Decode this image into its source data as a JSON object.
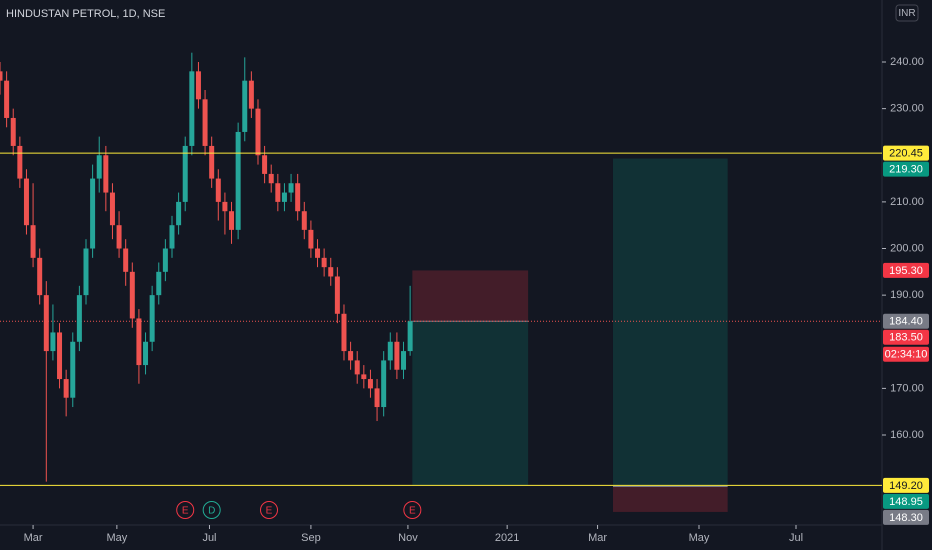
{
  "chart_data": {
    "type": "candlestick",
    "title": "HINDUSTAN PETROL, 1D, NSE",
    "currency_button": "INR",
    "up_color": "#26a69a",
    "down_color": "#ef5350",
    "xlim": [
      0,
      400
    ],
    "ylim": [
      140.7,
      253.3
    ],
    "xticks": [
      {
        "value": 15,
        "label": "Mar"
      },
      {
        "value": 53,
        "label": "May"
      },
      {
        "value": 95,
        "label": "Jul"
      },
      {
        "value": 141,
        "label": "Sep"
      },
      {
        "value": 185,
        "label": "Nov"
      },
      {
        "value": 230,
        "label": "2021"
      },
      {
        "value": 271,
        "label": "Mar"
      },
      {
        "value": 317,
        "label": "May"
      },
      {
        "value": 361,
        "label": "Jul"
      }
    ],
    "yticks": [
      {
        "value": 240,
        "label": "240.00"
      },
      {
        "value": 230,
        "label": "230.00"
      },
      {
        "value": 210,
        "label": "210.00"
      },
      {
        "value": 200,
        "label": "200.00"
      },
      {
        "value": 190,
        "label": "190.00"
      },
      {
        "value": 170,
        "label": "170.00"
      },
      {
        "value": 160,
        "label": "160.00"
      }
    ],
    "x": [
      0,
      3,
      6,
      9,
      12,
      15,
      18,
      21,
      24,
      27,
      30,
      33,
      36,
      39,
      42,
      45,
      48,
      51,
      54,
      57,
      60,
      63,
      66,
      69,
      72,
      75,
      78,
      81,
      84,
      87,
      90,
      93,
      96,
      99,
      102,
      105,
      108,
      111,
      114,
      117,
      120,
      123,
      126,
      129,
      132,
      135,
      138,
      141,
      144,
      147,
      150,
      153,
      156,
      159,
      162,
      165,
      168,
      171,
      174,
      177,
      180,
      183,
      186
    ],
    "open": [
      238,
      236,
      228,
      222,
      215,
      205,
      198,
      190,
      178,
      182,
      172,
      168,
      180,
      190,
      200,
      215,
      220,
      212,
      205,
      200,
      195,
      185,
      175,
      180,
      190,
      195,
      200,
      205,
      210,
      222,
      238,
      232,
      222,
      215,
      210,
      208,
      204,
      225,
      236,
      230,
      220,
      216,
      214,
      210,
      212,
      214,
      208,
      204,
      200,
      198,
      196,
      194,
      186,
      178,
      176,
      173,
      172,
      170,
      166,
      176,
      180,
      174,
      178
    ],
    "high": [
      240,
      238,
      230,
      224,
      217,
      214,
      200,
      193,
      188,
      184,
      174,
      182,
      192,
      202,
      218,
      224,
      222,
      214,
      208,
      202,
      197,
      187,
      182,
      192,
      197,
      202,
      207,
      212,
      224,
      242,
      240,
      234,
      224,
      217,
      212,
      210,
      227,
      241,
      238,
      232,
      222,
      218,
      216,
      214,
      216,
      216,
      210,
      206,
      202,
      200,
      198,
      196,
      188,
      180,
      178,
      175,
      174,
      172,
      178,
      182,
      182,
      180,
      192
    ],
    "low": [
      233,
      226,
      220,
      213,
      203,
      196,
      188,
      150,
      176,
      170,
      164,
      166,
      178,
      188,
      198,
      212,
      208,
      202,
      198,
      192,
      183,
      171,
      173,
      178,
      188,
      193,
      198,
      203,
      208,
      220,
      230,
      220,
      213,
      206,
      203,
      201,
      202,
      223,
      228,
      218,
      214,
      212,
      208,
      208,
      210,
      206,
      202,
      198,
      196,
      194,
      192,
      184,
      176,
      174,
      171,
      170,
      168,
      163,
      164,
      174,
      172,
      172,
      177
    ],
    "close": [
      236,
      228,
      222,
      215,
      205,
      198,
      190,
      178,
      182,
      172,
      168,
      180,
      190,
      200,
      215,
      220,
      212,
      205,
      200,
      195,
      185,
      175,
      180,
      190,
      195,
      200,
      205,
      210,
      222,
      238,
      232,
      222,
      215,
      210,
      208,
      204,
      225,
      236,
      230,
      220,
      216,
      214,
      210,
      212,
      214,
      208,
      204,
      200,
      198,
      196,
      194,
      186,
      178,
      176,
      173,
      172,
      170,
      166,
      176,
      180,
      174,
      178,
      184.4
    ],
    "horizontal_lines": [
      {
        "value": 220.45,
        "color": "#ffeb3b"
      },
      {
        "value": 149.2,
        "color": "#ffeb3b"
      }
    ],
    "current_price_line": {
      "value": 184.4,
      "color": "#ef5350"
    },
    "positions": [
      {
        "start": 187,
        "end": 239.5,
        "stop": 195.3,
        "entry": 184.4,
        "target": 149.2
      },
      {
        "start": 278,
        "end": 330,
        "stop": 143.5,
        "entry": 148.95,
        "target": 219.3
      }
    ],
    "price_badges": [
      {
        "value": 220.45,
        "label": "220.45",
        "color": "#ffeb3b",
        "text_color": "#131722"
      },
      {
        "value": 219.3,
        "label": "219.30",
        "color": "#089981",
        "text_color": "#ffffff"
      },
      {
        "value": 195.3,
        "label": "195.30",
        "color": "#f23645",
        "text_color": "#ffffff"
      },
      {
        "value": 184.4,
        "label": "184.40",
        "color": "#787b86",
        "text_color": "#ffffff"
      },
      {
        "value": 183.5,
        "label": "183.50",
        "color": "#f23645",
        "text_color": "#ffffff"
      },
      {
        "value": 149.2,
        "label": "149.20",
        "color": "#ffeb3b",
        "text_color": "#131722"
      },
      {
        "value": 148.95,
        "label": "148.95",
        "color": "#089981",
        "text_color": "#ffffff"
      },
      {
        "value": 148.3,
        "label": "148.30",
        "color": "#787b86",
        "text_color": "#ffffff"
      }
    ],
    "countdown": "02:34:10",
    "events": [
      {
        "x": 84,
        "label": "E",
        "color": "#f23645"
      },
      {
        "x": 96,
        "label": "D",
        "color": "#22ab94"
      },
      {
        "x": 122,
        "label": "E",
        "color": "#f23645"
      },
      {
        "x": 187,
        "label": "E",
        "color": "#f23645"
      }
    ]
  }
}
